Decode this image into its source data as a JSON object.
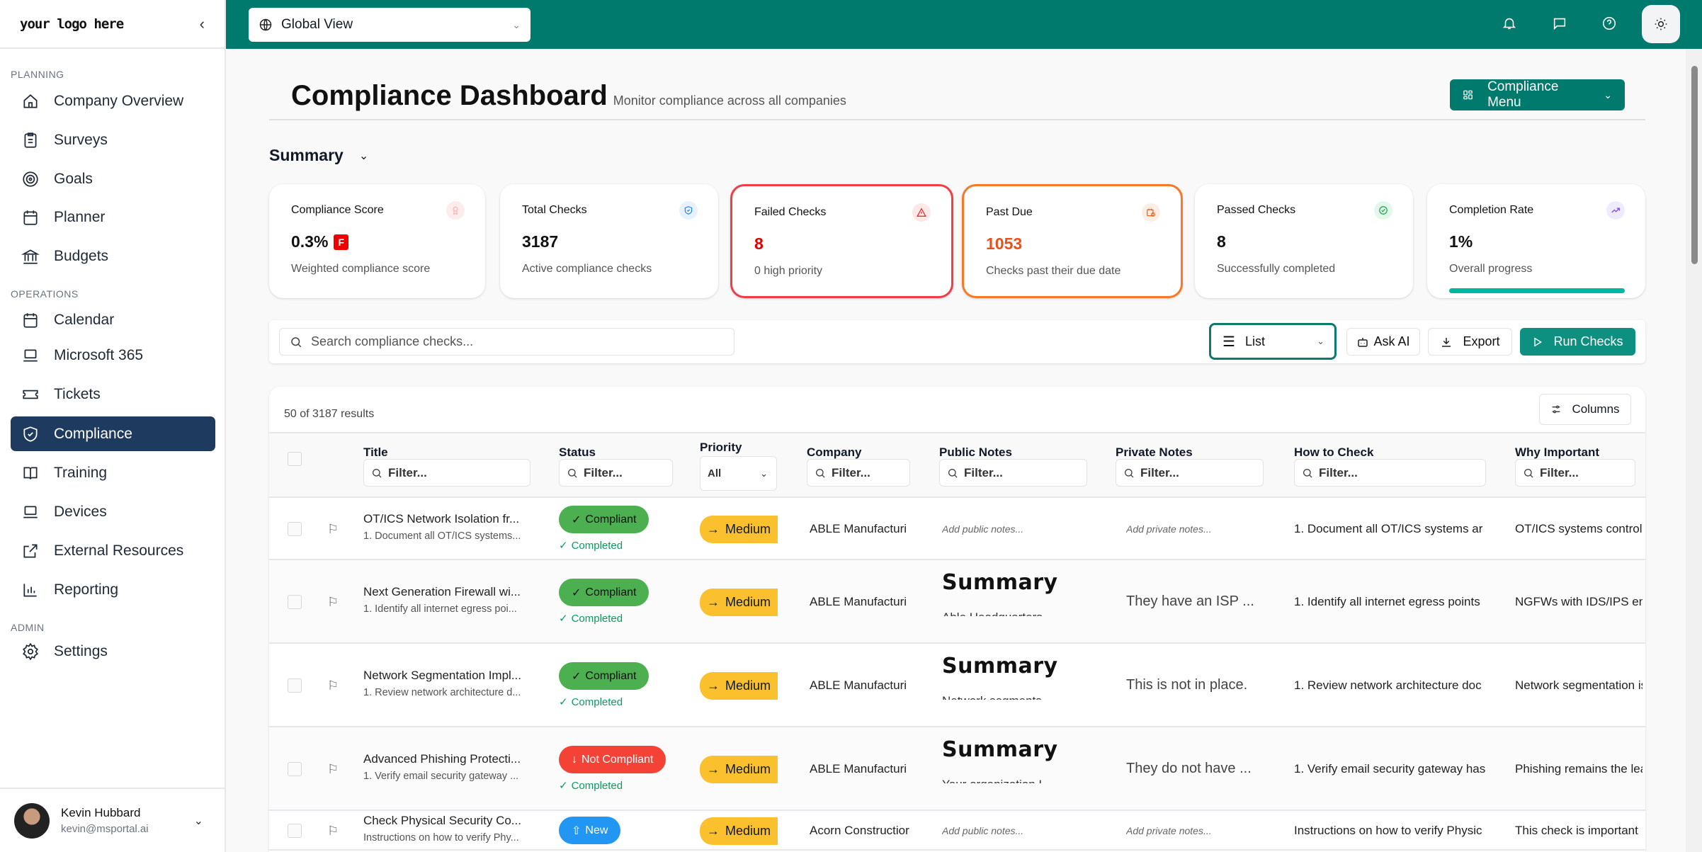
{
  "sidebar": {
    "logo": "your logo here",
    "sections": {
      "planning": "PLANNING",
      "operations": "OPERATIONS",
      "admin": "ADMIN"
    },
    "items": [
      {
        "label": "Company Overview",
        "icon": "home-icon"
      },
      {
        "label": "Surveys",
        "icon": "clipboard-icon"
      },
      {
        "label": "Goals",
        "icon": "target-icon"
      },
      {
        "label": "Planner",
        "icon": "calendar-icon"
      },
      {
        "label": "Budgets",
        "icon": "bank-icon"
      },
      {
        "label": "Calendar",
        "icon": "calendar-icon"
      },
      {
        "label": "Microsoft 365",
        "icon": "laptop-icon"
      },
      {
        "label": "Tickets",
        "icon": "ticket-icon"
      },
      {
        "label": "Compliance",
        "icon": "shield-icon",
        "active": true
      },
      {
        "label": "Training",
        "icon": "book-icon"
      },
      {
        "label": "Devices",
        "icon": "laptop-icon"
      },
      {
        "label": "External Resources",
        "icon": "external-link-icon"
      },
      {
        "label": "Reporting",
        "icon": "bar-chart-icon"
      },
      {
        "label": "Settings",
        "icon": "gear-icon"
      }
    ],
    "user": {
      "name": "Kevin Hubbard",
      "email": "kevin@msportal.ai"
    }
  },
  "topbar": {
    "view_selector": "Global View",
    "accent": "#007a6c"
  },
  "header": {
    "title": "Compliance Dashboard",
    "subtitle": "Monitor compliance across all companies",
    "menu_button": "Compliance Menu"
  },
  "summary": {
    "title": "Summary",
    "cards": [
      {
        "label": "Compliance Score",
        "value": "0.3%",
        "grade": "F",
        "desc": "Weighted compliance score"
      },
      {
        "label": "Total Checks",
        "value": "3187",
        "desc": "Active compliance checks"
      },
      {
        "label": "Failed Checks",
        "value": "8",
        "desc": "0 high priority"
      },
      {
        "label": "Past Due",
        "value": "1053",
        "desc": "Checks past their due date"
      },
      {
        "label": "Passed Checks",
        "value": "8",
        "desc": "Successfully completed"
      },
      {
        "label": "Completion Rate",
        "value": "1%",
        "desc": "Overall progress",
        "progress": 0.01
      }
    ]
  },
  "toolbar": {
    "search_placeholder": "Search compliance checks...",
    "view": "List",
    "ask_ai": "Ask AI",
    "export": "Export",
    "run_checks": "Run Checks"
  },
  "table": {
    "result_count": "50 of 3187 results",
    "columns_button": "Columns",
    "filter_placeholder": "Filter...",
    "priority_filter": "All",
    "headers": [
      "Title",
      "Status",
      "Priority",
      "Company",
      "Public Notes",
      "Private Notes",
      "How to Check",
      "Why Important"
    ],
    "rows": [
      {
        "title": "OT/ICS Network Isolation fr...",
        "desc": "1. Document all OT/ICS systems...",
        "status": "Compliant",
        "status_kind": "green",
        "sub_status": "Completed",
        "priority": "Medium",
        "company": "ABLE Manufacturi",
        "public_note": "Add public notes...",
        "private_note": "Add private notes...",
        "how": "1. Document all OT/ICS systems ar",
        "why": "OT/ICS systems control"
      },
      {
        "title": "Next Generation Firewall wi...",
        "desc": "1. Identify all internet egress poi...",
        "status": "Compliant",
        "status_kind": "green",
        "sub_status": "Completed",
        "priority": "Medium",
        "company": "ABLE Manufacturi",
        "public_summary": "Summary",
        "public_summary_text": "Able Headquarters",
        "private_text": "They have an ISP ...",
        "how": "1. Identify all internet egress points",
        "why": "NGFWs with IDS/IPS en"
      },
      {
        "title": "Network Segmentation Impl...",
        "desc": "1. Review network architecture d...",
        "status": "Compliant",
        "status_kind": "green",
        "sub_status": "Completed",
        "priority": "Medium",
        "company": "ABLE Manufacturi",
        "public_summary": "Summary",
        "public_summary_text": "Network segments",
        "private_text": "This is not in place.",
        "how": "1. Review network architecture doc",
        "why": "Network segmentation is"
      },
      {
        "title": "Advanced Phishing Protecti...",
        "desc": "1. Verify email security gateway ...",
        "status": "Not Compliant",
        "status_kind": "red",
        "sub_status": "Completed",
        "priority": "Medium",
        "company": "ABLE Manufacturi",
        "public_summary": "Summary",
        "public_summary_text": "Your organization I",
        "private_text": "They do not have ...",
        "how": "1. Verify email security gateway has",
        "why": "Phishing remains the lea"
      },
      {
        "title": "Check Physical Security Co...",
        "desc": "Instructions on how to verify Phy...",
        "status": "New",
        "status_kind": "blue",
        "priority": "Medium",
        "company": "Acorn Constructior",
        "public_note": "Add public notes...",
        "private_note": "Add private notes...",
        "how": "Instructions on how to verify Physic",
        "why": "This check is important"
      }
    ]
  }
}
